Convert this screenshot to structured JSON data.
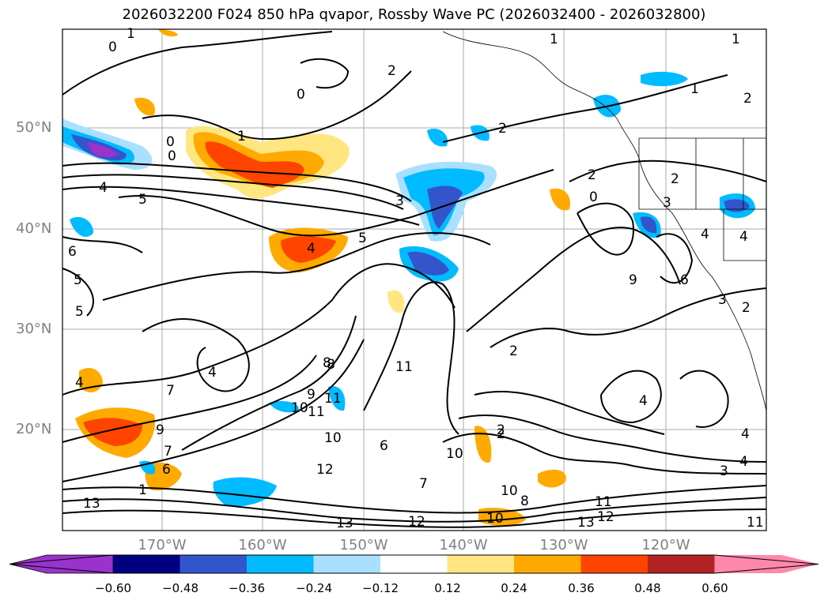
{
  "title": "2026032200 F024 850 hPa qvapor, Rossby Wave PC (2026032400 - 2026032800)",
  "lat_labels": [
    "50°N",
    "40°N",
    "30°N",
    "20°N"
  ],
  "lon_labels": [
    "170°W",
    "160°W",
    "150°W",
    "140°W",
    "130°W",
    "120°W"
  ],
  "colorbar": {
    "ticks": [
      "−0.60",
      "−0.48",
      "−0.36",
      "−0.24",
      "−0.12",
      "0.12",
      "0.24",
      "0.36",
      "0.48",
      "0.60"
    ],
    "colors": [
      "#9933cc",
      "#000080",
      "#3355cc",
      "#00bbff",
      "#aae0ff",
      "#ffffff",
      "#ffe680",
      "#ffaa00",
      "#ff4400",
      "#b22222",
      "#ff88aa"
    ]
  },
  "contour_labels": [
    "1",
    "0",
    "2",
    "1",
    "1",
    "0",
    "1",
    "2",
    "0",
    "1",
    "0",
    "5",
    "4",
    "5",
    "3",
    "2",
    "2",
    "0",
    "3",
    "4",
    "4",
    "6",
    "5",
    "4",
    "2",
    "2",
    "2",
    "5",
    "4",
    "6",
    "7",
    "11",
    "8",
    "9",
    "11",
    "10",
    "10",
    "12",
    "11",
    "10",
    "6",
    "7",
    "12",
    "13",
    "8",
    "2",
    "3",
    "4",
    "4",
    "3",
    "11",
    "12",
    "13",
    "11",
    "8",
    "9",
    "10",
    "6",
    "13",
    "4",
    "7",
    "9",
    "4",
    "2",
    "1",
    "10"
  ],
  "markers": {
    "pc_colors": {
      "pos_light": "#ffe680",
      "pos_mid": "#ffaa00",
      "pos_strong": "#ff4400",
      "neg_light": "#aae0ff",
      "neg_mid": "#00bbff",
      "neg_strong": "#3355cc"
    }
  }
}
